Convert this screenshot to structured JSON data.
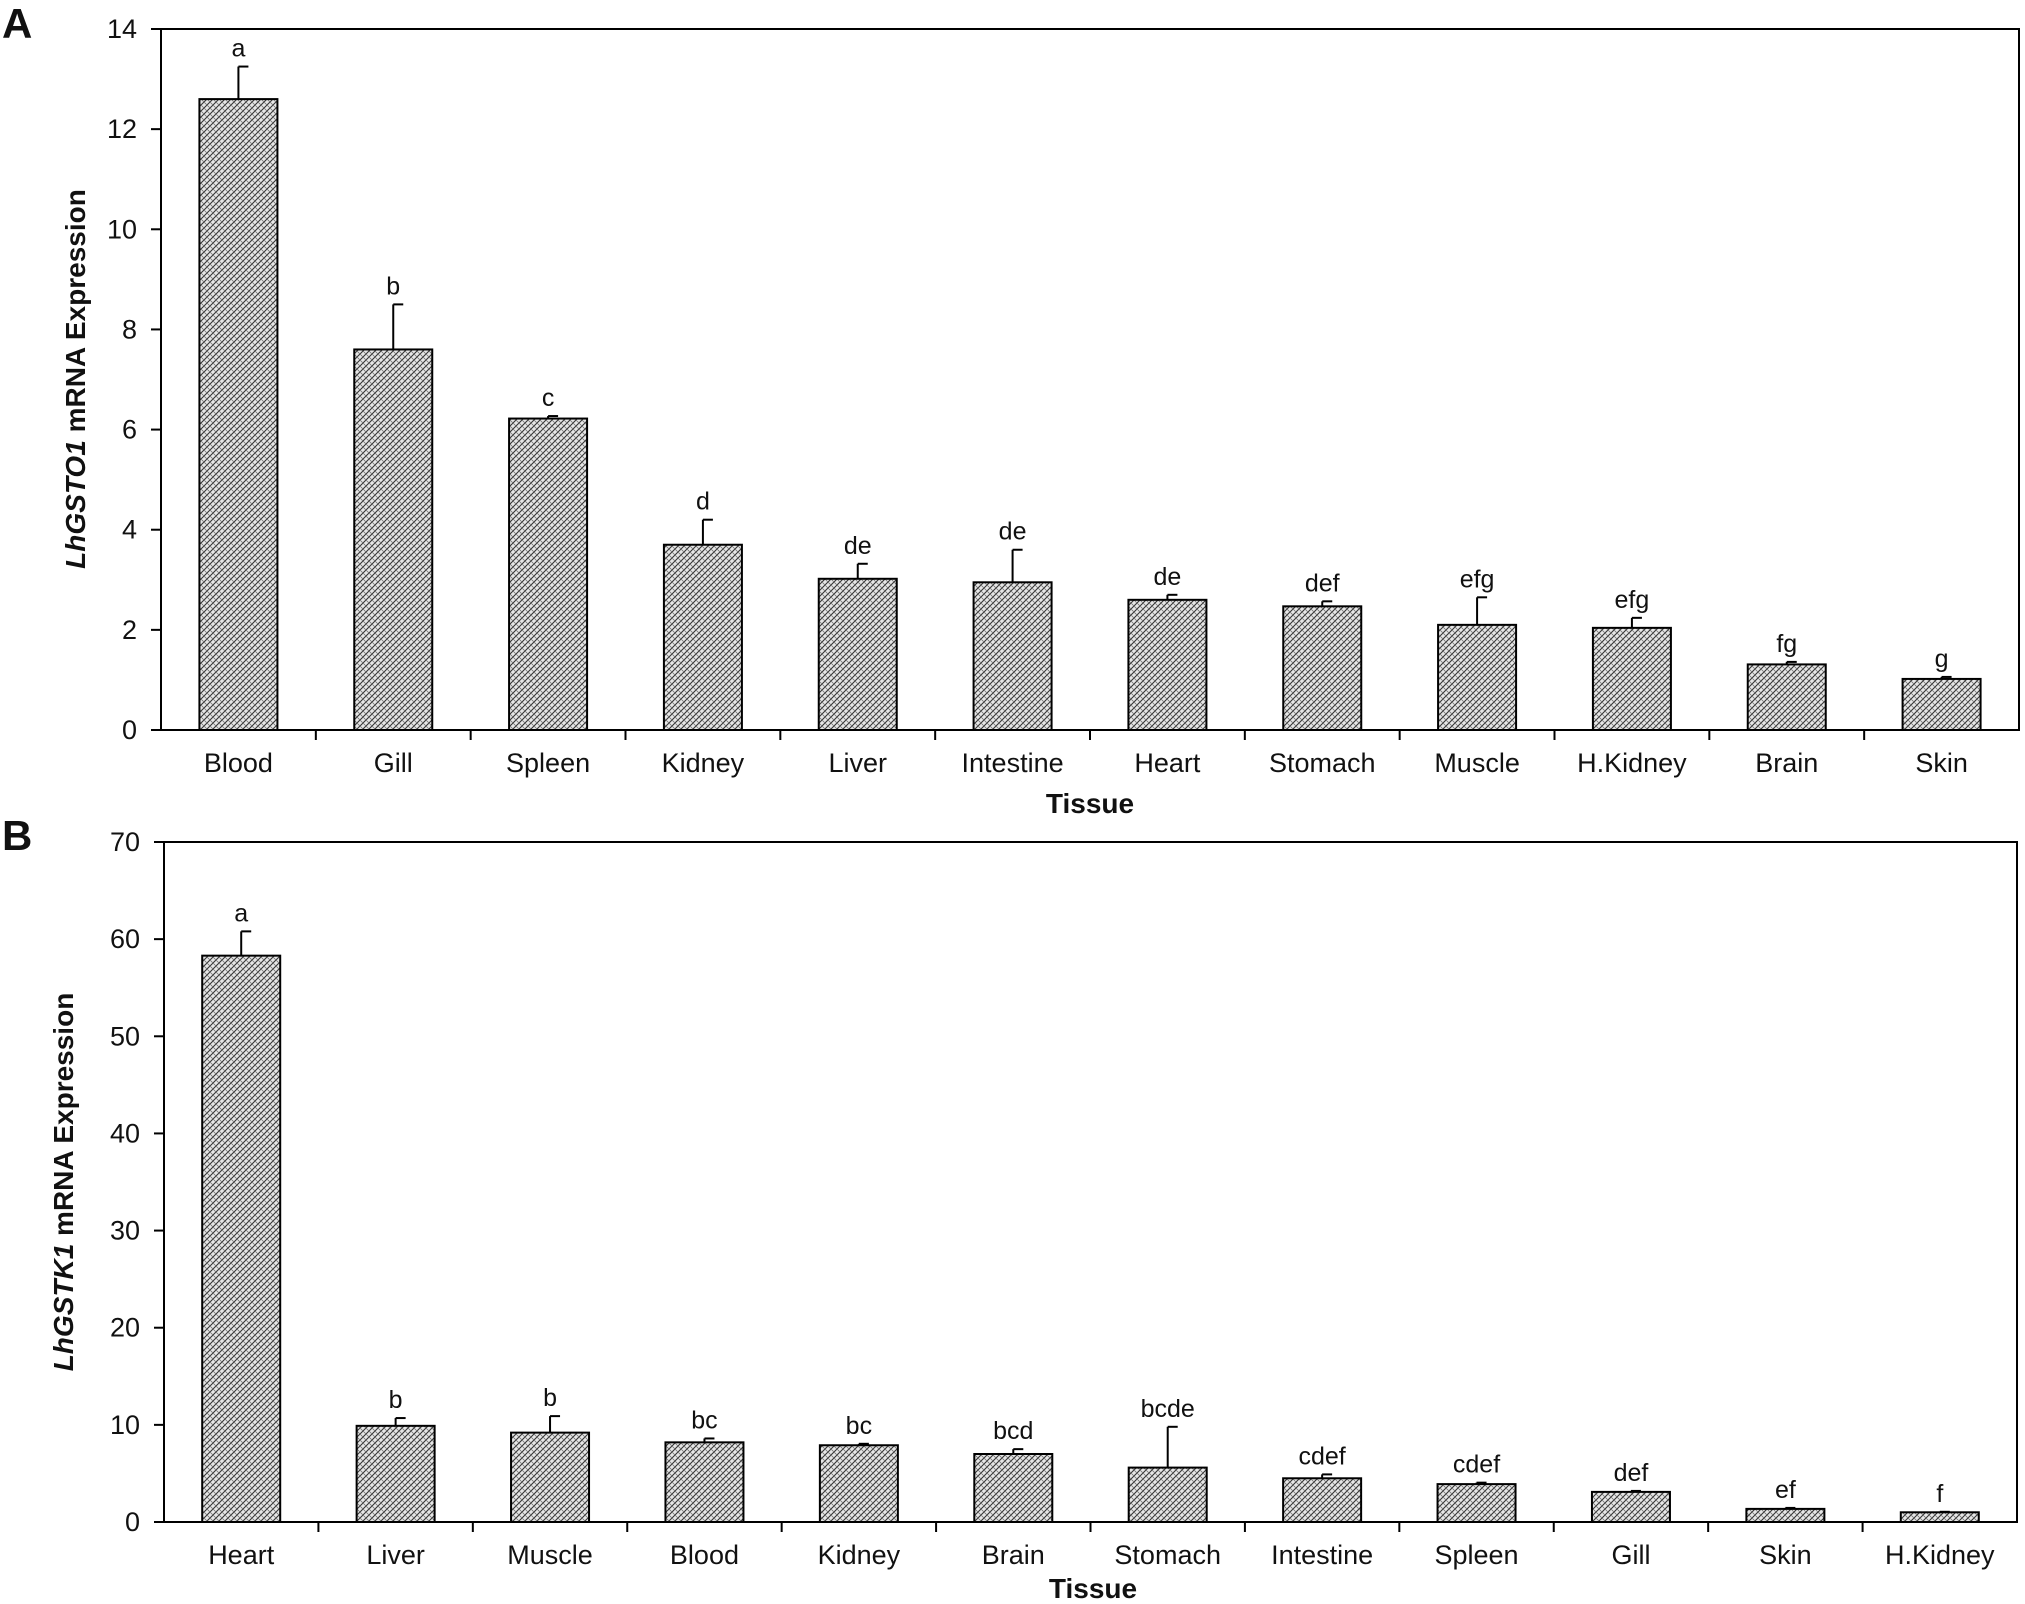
{
  "chart_data": [
    {
      "panel": "A",
      "type": "bar",
      "xlabel": "Tissue",
      "ylabel_italic": "LhGSTO1",
      "ylabel_rest": " mRNA Expression",
      "ylim": [
        0,
        14
      ],
      "yticks": [
        0,
        2,
        4,
        6,
        8,
        10,
        12,
        14
      ],
      "grid": false,
      "categories": [
        "Blood",
        "Gill",
        "Spleen",
        "Kidney",
        "Liver",
        "Intestine",
        "Heart",
        "Stomach",
        "Muscle",
        "H.Kidney",
        "Brain",
        "Skin"
      ],
      "values": [
        12.6,
        7.6,
        6.22,
        3.7,
        3.02,
        2.95,
        2.6,
        2.47,
        2.1,
        2.04,
        1.31,
        1.02
      ],
      "errors": [
        0.65,
        0.9,
        0.05,
        0.5,
        0.3,
        0.65,
        0.1,
        0.1,
        0.55,
        0.2,
        0.05,
        0.04
      ],
      "significance": [
        "a",
        "b",
        "c",
        "d",
        "de",
        "de",
        "de",
        "def",
        "efg",
        "efg",
        "fg",
        "g"
      ]
    },
    {
      "panel": "B",
      "type": "bar",
      "xlabel": "Tissue",
      "ylabel_italic": "LhGSTK1",
      "ylabel_rest": " mRNA Expression",
      "ylim": [
        0,
        70
      ],
      "yticks": [
        0,
        10,
        20,
        30,
        40,
        50,
        60,
        70
      ],
      "grid": false,
      "categories": [
        "Heart",
        "Liver",
        "Muscle",
        "Blood",
        "Kidney",
        "Brain",
        "Stomach",
        "Intestine",
        "Spleen",
        "Gill",
        "Skin",
        "H.Kidney"
      ],
      "values": [
        58.3,
        9.9,
        9.2,
        8.2,
        7.9,
        7.0,
        5.6,
        4.5,
        3.9,
        3.1,
        1.35,
        1.0
      ],
      "errors": [
        2.5,
        0.8,
        1.7,
        0.4,
        0.15,
        0.5,
        4.2,
        0.4,
        0.15,
        0.1,
        0.1,
        0.05
      ],
      "significance": [
        "a",
        "b",
        "b",
        "bc",
        "bc",
        "bcd",
        "bcde",
        "cdef",
        "cdef",
        "def",
        "ef",
        "f"
      ]
    }
  ]
}
